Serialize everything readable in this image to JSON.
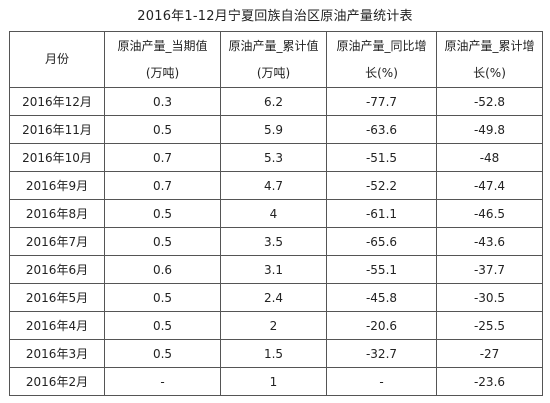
{
  "title": "2016年1-12月宁夏回族自治区原油产量统计表",
  "table": {
    "headers": [
      {
        "line1": "月份",
        "line2": ""
      },
      {
        "line1": "原油产量_当期值",
        "line2": "(万吨)"
      },
      {
        "line1": "原油产量_累计值",
        "line2": "(万吨)"
      },
      {
        "line1": "原油产量_同比增",
        "line2": "长(%)"
      },
      {
        "line1": "原油产量_累计增",
        "line2": "长(%)"
      }
    ],
    "rows": [
      [
        "2016年12月",
        "0.3",
        "6.2",
        "-77.7",
        "-52.8"
      ],
      [
        "2016年11月",
        "0.5",
        "5.9",
        "-63.6",
        "-49.8"
      ],
      [
        "2016年10月",
        "0.7",
        "5.3",
        "-51.5",
        "-48"
      ],
      [
        "2016年9月",
        "0.7",
        "4.7",
        "-52.2",
        "-47.4"
      ],
      [
        "2016年8月",
        "0.5",
        "4",
        "-61.1",
        "-46.5"
      ],
      [
        "2016年7月",
        "0.5",
        "3.5",
        "-65.6",
        "-43.6"
      ],
      [
        "2016年6月",
        "0.6",
        "3.1",
        "-55.1",
        "-37.7"
      ],
      [
        "2016年5月",
        "0.5",
        "2.4",
        "-45.8",
        "-30.5"
      ],
      [
        "2016年4月",
        "0.5",
        "2",
        "-20.6",
        "-25.5"
      ],
      [
        "2016年3月",
        "0.5",
        "1.5",
        "-32.7",
        "-27"
      ],
      [
        "2016年2月",
        "-",
        "1",
        "-",
        "-23.6"
      ]
    ]
  }
}
